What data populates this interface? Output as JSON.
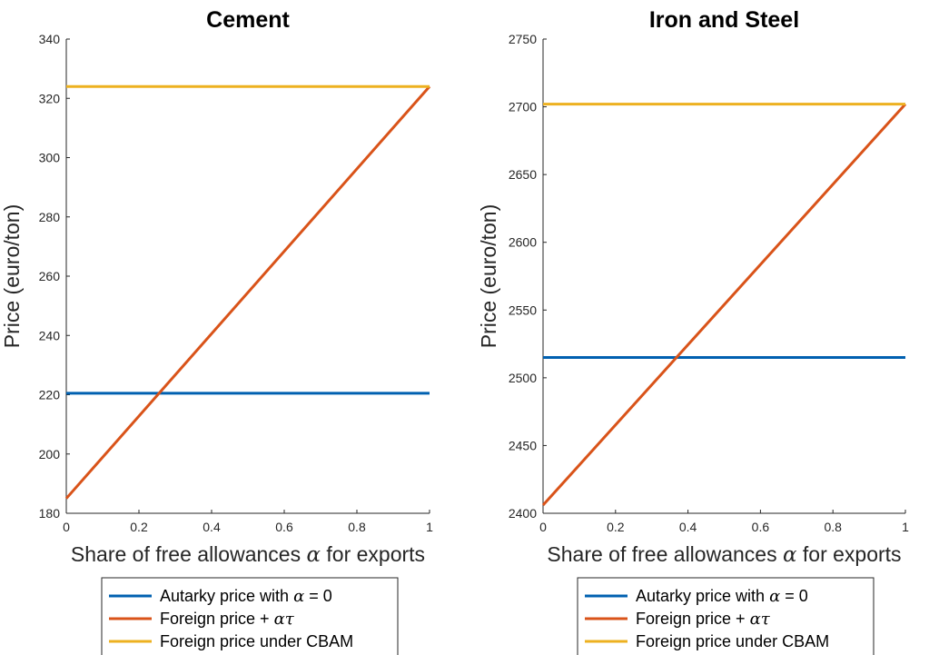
{
  "colors": {
    "autarky": "#0060B0",
    "foreign": "#D95319",
    "cbam": "#EDB120",
    "axis": "#262626"
  },
  "chart_data": [
    {
      "type": "line",
      "title": "Cement",
      "xlabel": "Share of free allowances α for exports",
      "ylabel": "Price (euro/ton)",
      "xlim": [
        0,
        1
      ],
      "ylim": [
        180,
        340
      ],
      "xticks": [
        0,
        0.2,
        0.4,
        0.6,
        0.8,
        1
      ],
      "xtick_labels": [
        "0",
        "0.2",
        "0.4",
        "0.6",
        "0.8",
        "1"
      ],
      "yticks": [
        180,
        200,
        220,
        240,
        260,
        280,
        300,
        320,
        340
      ],
      "ytick_labels": [
        "180",
        "200",
        "220",
        "240",
        "260",
        "280",
        "300",
        "320",
        "340"
      ],
      "grid": false,
      "legend_position": "below",
      "series": [
        {
          "name": "Autarky price with α = 0",
          "color_key": "autarky",
          "x": [
            0,
            1
          ],
          "y": [
            220.5,
            220.5
          ]
        },
        {
          "name": "Foreign price + ατ",
          "color_key": "foreign",
          "x": [
            0,
            1
          ],
          "y": [
            185,
            324
          ]
        },
        {
          "name": "Foreign price under CBAM",
          "color_key": "cbam",
          "x": [
            0,
            1
          ],
          "y": [
            324,
            324
          ]
        }
      ]
    },
    {
      "type": "line",
      "title": "Iron and Steel",
      "xlabel": "Share of free allowances α for exports",
      "ylabel": "Price (euro/ton)",
      "xlim": [
        0,
        1
      ],
      "ylim": [
        2400,
        2750
      ],
      "xticks": [
        0,
        0.2,
        0.4,
        0.6,
        0.8,
        1
      ],
      "xtick_labels": [
        "0",
        "0.2",
        "0.4",
        "0.6",
        "0.8",
        "1"
      ],
      "yticks": [
        2400,
        2450,
        2500,
        2550,
        2600,
        2650,
        2700,
        2750
      ],
      "ytick_labels": [
        "2400",
        "2450",
        "2500",
        "2550",
        "2600",
        "2650",
        "2700",
        "2750"
      ],
      "grid": false,
      "legend_position": "below",
      "series": [
        {
          "name": "Autarky price with α = 0",
          "color_key": "autarky",
          "x": [
            0,
            1
          ],
          "y": [
            2515,
            2515
          ]
        },
        {
          "name": "Foreign price + ατ",
          "color_key": "foreign",
          "x": [
            0,
            1
          ],
          "y": [
            2406,
            2702
          ]
        },
        {
          "name": "Foreign price under CBAM",
          "color_key": "cbam",
          "x": [
            0,
            1
          ],
          "y": [
            2702,
            2702
          ]
        }
      ]
    }
  ]
}
